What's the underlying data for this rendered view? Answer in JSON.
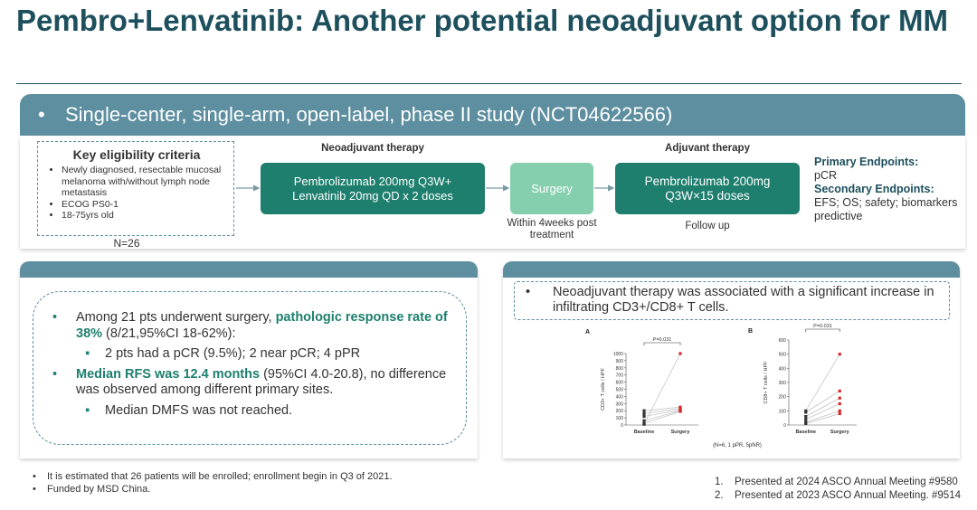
{
  "header": {
    "title": "Pembro+Lenvatinib: Another potential neoadjuvant option for MM"
  },
  "banner": "Single-center, single-arm, open-label, phase II study (NCT04622566)",
  "design": {
    "eligibility": {
      "title": "Key eligibility criteria",
      "items": [
        "Newly diagnosed, resectable mucosal melanoma with/without lymph node metastasis",
        "ECOG PS0-1",
        "18-75yrs old"
      ],
      "n": "N=26"
    },
    "neoadjuvant_label": "Neoadjuvant therapy",
    "neoadjuvant_box": "Pembrolizumab 200mg Q3W+ Lenvatinib 20mg QD x 2 doses",
    "surgery_box": "Surgery",
    "surgery_note": "Within 4weeks post treatment",
    "adjuvant_label": "Adjuvant therapy",
    "adjuvant_box": "Pembrolizumab 200mg Q3W×15 doses",
    "adjuvant_note": "Follow up",
    "endpoints": {
      "primary_title": "Primary Endpoints:",
      "primary": "pCR",
      "secondary_title": "Secondary Endpoints:",
      "secondary": "EFS; OS; safety; biomarkers predictive"
    }
  },
  "results": [
    {
      "level": 1,
      "parts": [
        {
          "text": "Among 21 pts underwent surgery, "
        },
        {
          "text": "pathologic response rate of 38%",
          "strong": true
        },
        {
          "text": " (8/21,95%CI 18-62%):"
        }
      ]
    },
    {
      "level": 2,
      "parts": [
        {
          "text": "2 pts had a pCR (9.5%); 2 near pCR; 4 pPR"
        }
      ]
    },
    {
      "level": 1,
      "parts": [
        {
          "text": "Median RFS was 12.4 months",
          "strong": true
        },
        {
          "text": " (95%CI 4.0-20.8), no difference was observed among different primary sites."
        }
      ]
    },
    {
      "level": 2,
      "parts": [
        {
          "text": "Median DMFS was not reached."
        }
      ]
    }
  ],
  "statement": "Neoadjuvant therapy was associated with a significant increase in infiltrating CD3+/CD8+ T cells.",
  "chart_note": "(N=6, 1 pPR, 5pNR)",
  "chart_data": [
    {
      "type": "line",
      "panel_label": "A",
      "y_label": "CD3+ T cells / HPF",
      "annotation": "P=0.031",
      "categories": [
        "Baseline",
        "Surgery"
      ],
      "ylim": [
        0,
        1000
      ],
      "yticks": [
        0,
        100,
        200,
        300,
        400,
        500,
        600,
        700,
        800,
        900,
        1000
      ],
      "line_color": "#c4c4c4",
      "marker_colors": [
        "#333333",
        "#d62728"
      ],
      "series": [
        {
          "values": [
            10,
            1000
          ]
        },
        {
          "values": [
            200,
            250
          ]
        },
        {
          "values": [
            160,
            230
          ]
        },
        {
          "values": [
            120,
            210
          ]
        },
        {
          "values": [
            60,
            200
          ]
        },
        {
          "values": [
            20,
            190
          ]
        }
      ]
    },
    {
      "type": "line",
      "panel_label": "B",
      "y_label": "CD8+ T cells / HPF",
      "annotation": "P=0.031",
      "categories": [
        "Baseline",
        "Surgery"
      ],
      "ylim": [
        0,
        600
      ],
      "yticks": [
        0,
        100,
        200,
        300,
        400,
        500,
        600
      ],
      "line_color": "#c4c4c4",
      "marker_colors": [
        "#333333",
        "#d62728"
      ],
      "series": [
        {
          "values": [
            100,
            500
          ]
        },
        {
          "values": [
            90,
            240
          ]
        },
        {
          "values": [
            60,
            190
          ]
        },
        {
          "values": [
            40,
            150
          ]
        },
        {
          "values": [
            20,
            100
          ]
        },
        {
          "values": [
            10,
            80
          ]
        }
      ]
    }
  ],
  "footnotes": [
    "It is estimated that 26 patients will be enrolled; enrollment begin in Q3 of 2021.",
    "Funded by MSD China."
  ],
  "references": [
    {
      "num": "1.",
      "text": "Presented at 2024 ASCO Annual Meeting #9580"
    },
    {
      "num": "2.",
      "text": "Presented at 2023 ASCO Annual Meeting. #9514"
    }
  ]
}
